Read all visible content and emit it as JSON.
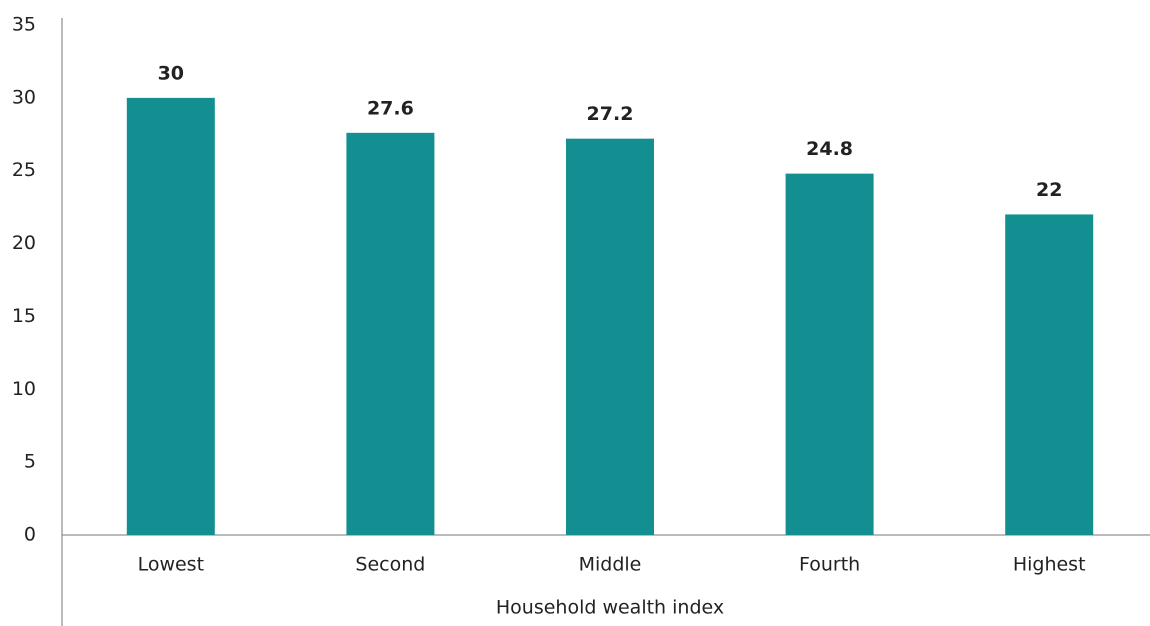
{
  "chart_data": {
    "type": "bar",
    "categories": [
      "Lowest",
      "Second",
      "Middle",
      "Fourth",
      "Highest"
    ],
    "values": [
      30,
      27.6,
      27.2,
      24.8,
      22
    ],
    "color": "#138f91",
    "x_label": "Household wealth index",
    "ylim": [
      0,
      35
    ],
    "yticks": [
      0,
      5,
      10,
      15,
      20,
      25,
      30,
      35
    ],
    "grid": false
  }
}
